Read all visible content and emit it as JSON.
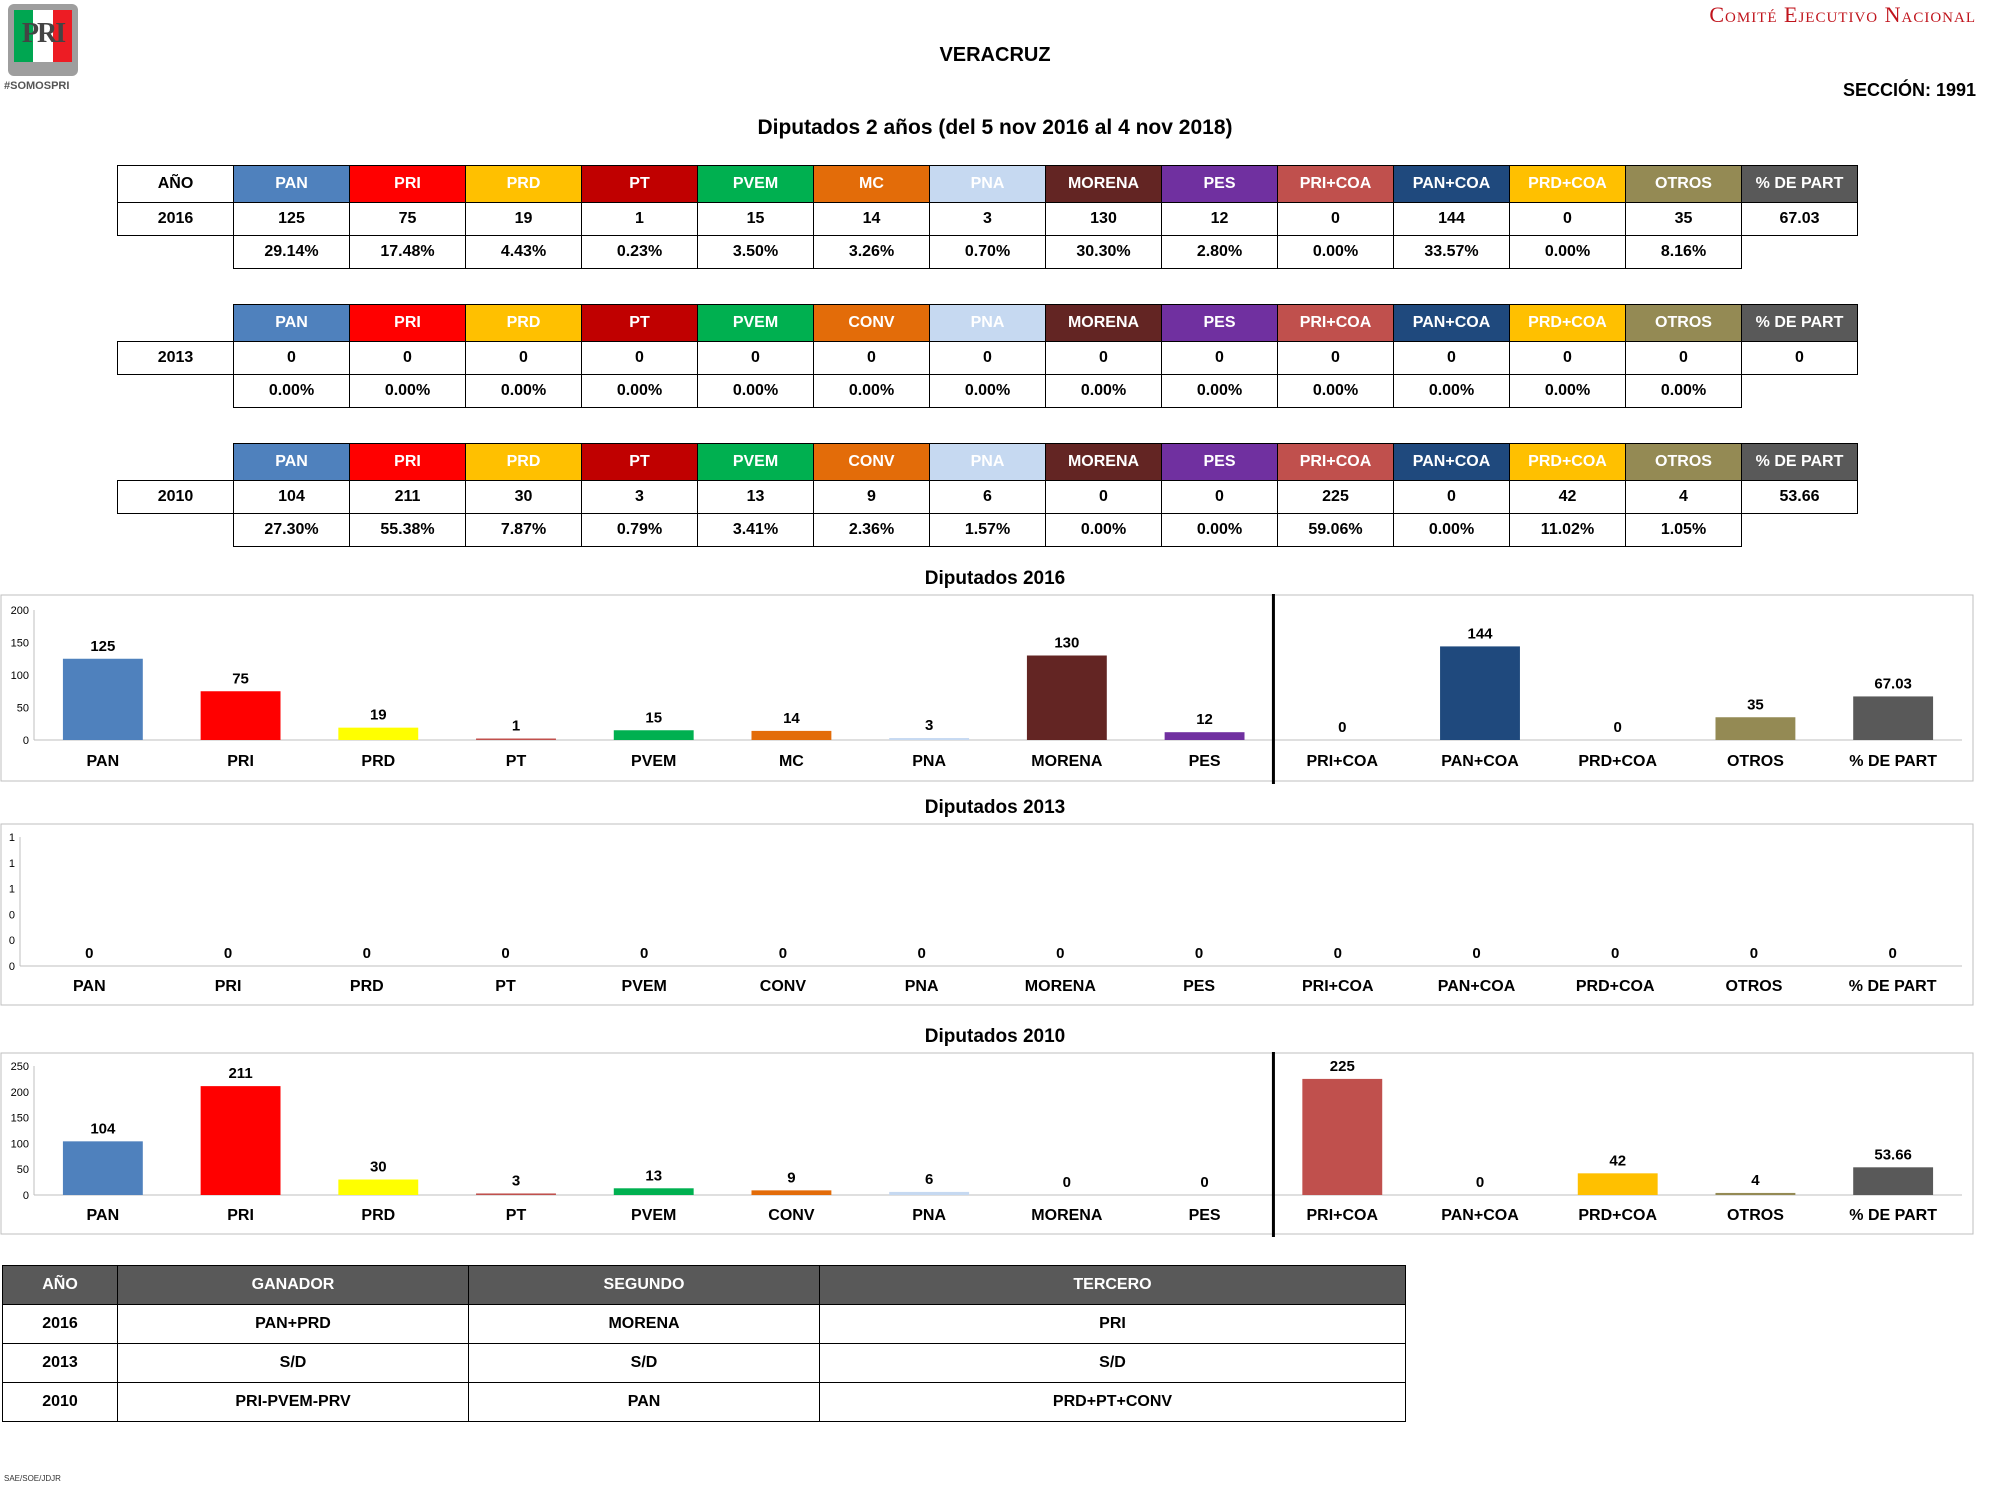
{
  "header": {
    "logo_text": "PRI",
    "hashtag": "#SOMOSPRI",
    "committee": "Comité Ejecutivo Nacional",
    "state": "VERACRUZ",
    "section": "SECCIÓN: 1991",
    "subtitle": "Diputados 2 años (del 5 nov 2016 al 4 nov 2018)"
  },
  "colors": {
    "PAN": "#4f81bd",
    "PRI": "#ff0000",
    "PRD": "#ffc000",
    "PT": "#c00000",
    "PVEM": "#00b050",
    "MC": "#e36c09",
    "CONV": "#e36c09",
    "PNA": "#c6d9f1",
    "MORENA": "#632523",
    "PES": "#7030a0",
    "PRI+COA": "#c0504d",
    "PAN+COA": "#1f497d",
    "PRD+COA": "#ffc000",
    "OTROS": "#948a54",
    "% DE PART": "#595959",
    "PRD_bar": "#ffff00"
  },
  "tables": [
    {
      "year_header": "AÑO",
      "year": "2016",
      "headers": [
        "PAN",
        "PRI",
        "PRD",
        "PT",
        "PVEM",
        "MC",
        "PNA",
        "MORENA",
        "PES",
        "PRI+COA",
        "PAN+COA",
        "PRD+COA",
        "OTROS",
        "% DE PART"
      ],
      "values": [
        "125",
        "75",
        "19",
        "1",
        "15",
        "14",
        "3",
        "130",
        "12",
        "0",
        "144",
        "0",
        "35",
        "67.03"
      ],
      "percents": [
        "29.14%",
        "17.48%",
        "4.43%",
        "0.23%",
        "3.50%",
        "3.26%",
        "0.70%",
        "30.30%",
        "2.80%",
        "0.00%",
        "33.57%",
        "0.00%",
        "8.16%"
      ]
    },
    {
      "year_header": "",
      "year": "2013",
      "headers": [
        "PAN",
        "PRI",
        "PRD",
        "PT",
        "PVEM",
        "CONV",
        "PNA",
        "MORENA",
        "PES",
        "PRI+COA",
        "PAN+COA",
        "PRD+COA",
        "OTROS",
        "% DE PART"
      ],
      "values": [
        "0",
        "0",
        "0",
        "0",
        "0",
        "0",
        "0",
        "0",
        "0",
        "0",
        "0",
        "0",
        "0",
        "0"
      ],
      "percents": [
        "0.00%",
        "0.00%",
        "0.00%",
        "0.00%",
        "0.00%",
        "0.00%",
        "0.00%",
        "0.00%",
        "0.00%",
        "0.00%",
        "0.00%",
        "0.00%",
        "0.00%"
      ]
    },
    {
      "year_header": "",
      "year": "2010",
      "headers": [
        "PAN",
        "PRI",
        "PRD",
        "PT",
        "PVEM",
        "CONV",
        "PNA",
        "MORENA",
        "PES",
        "PRI+COA",
        "PAN+COA",
        "PRD+COA",
        "OTROS",
        "% DE PART"
      ],
      "values": [
        "104",
        "211",
        "30",
        "3",
        "13",
        "9",
        "6",
        "0",
        "0",
        "225",
        "0",
        "42",
        "4",
        "53.66"
      ],
      "percents": [
        "27.30%",
        "55.38%",
        "7.87%",
        "0.79%",
        "3.41%",
        "2.36%",
        "1.57%",
        "0.00%",
        "0.00%",
        "59.06%",
        "0.00%",
        "11.02%",
        "1.05%"
      ]
    }
  ],
  "chart_data": [
    {
      "type": "bar",
      "title": "Diputados  2016",
      "categories": [
        "PAN",
        "PRI",
        "PRD",
        "PT",
        "PVEM",
        "MC",
        "PNA",
        "MORENA",
        "PES",
        "PRI+COA",
        "PAN+COA",
        "PRD+COA",
        "OTROS",
        "% DE PART"
      ],
      "values": [
        125,
        75,
        19,
        1,
        15,
        14,
        3,
        130,
        12,
        0,
        144,
        0,
        35,
        67.03
      ],
      "value_labels": [
        "125",
        "75",
        "19",
        "1",
        "15",
        "14",
        "3",
        "130",
        "12",
        "0",
        "144",
        "0",
        "35",
        "67.03"
      ],
      "colors": [
        "#4f81bd",
        "#ff0000",
        "#ffff00",
        "#c0504d",
        "#00b050",
        "#e36c09",
        "#c6d9f1",
        "#632523",
        "#7030a0",
        "#c0504d",
        "#1f497d",
        "#ffc000",
        "#948a54",
        "#595959"
      ],
      "ylim": [
        0,
        200
      ],
      "yticks": [
        "0",
        "50",
        "100",
        "150",
        "200"
      ],
      "separator_after": 9
    },
    {
      "type": "bar",
      "title": "Diputados 2013",
      "categories": [
        "PAN",
        "PRI",
        "PRD",
        "PT",
        "PVEM",
        "CONV",
        "PNA",
        "MORENA",
        "PES",
        "PRI+COA",
        "PAN+COA",
        "PRD+COA",
        "OTROS",
        "% DE PART"
      ],
      "values": [
        0,
        0,
        0,
        0,
        0,
        0,
        0,
        0,
        0,
        0,
        0,
        0,
        0,
        0
      ],
      "value_labels": [
        "0",
        "0",
        "0",
        "0",
        "0",
        "0",
        "0",
        "0",
        "0",
        "0",
        "0",
        "0",
        "0",
        "0"
      ],
      "colors": [
        "#4f81bd",
        "#ff0000",
        "#ffff00",
        "#c0504d",
        "#00b050",
        "#e36c09",
        "#c6d9f1",
        "#632523",
        "#7030a0",
        "#c0504d",
        "#1f497d",
        "#ffc000",
        "#948a54",
        "#595959"
      ],
      "ylim": [
        0,
        1
      ],
      "yticks": [
        "0",
        "0",
        "0",
        "1",
        "1",
        "1"
      ],
      "separator_after": null
    },
    {
      "type": "bar",
      "title": "Diputados 2010",
      "categories": [
        "PAN",
        "PRI",
        "PRD",
        "PT",
        "PVEM",
        "CONV",
        "PNA",
        "MORENA",
        "PES",
        "PRI+COA",
        "PAN+COA",
        "PRD+COA",
        "OTROS",
        "% DE PART"
      ],
      "values": [
        104,
        211,
        30,
        3,
        13,
        9,
        6,
        0,
        0,
        225,
        0,
        42,
        4,
        53.66
      ],
      "value_labels": [
        "104",
        "211",
        "30",
        "3",
        "13",
        "9",
        "6",
        "0",
        "0",
        "225",
        "0",
        "42",
        "4",
        "53.66"
      ],
      "colors": [
        "#4f81bd",
        "#ff0000",
        "#ffff00",
        "#c0504d",
        "#00b050",
        "#e36c09",
        "#c6d9f1",
        "#632523",
        "#7030a0",
        "#c0504d",
        "#1f497d",
        "#ffc000",
        "#948a54",
        "#595959"
      ],
      "ylim": [
        0,
        250
      ],
      "yticks": [
        "0",
        "50",
        "100",
        "150",
        "200",
        "250"
      ],
      "separator_after": 9
    }
  ],
  "winners": {
    "headers": [
      "AÑO",
      "GANADOR",
      "SEGUNDO",
      "TERCERO"
    ],
    "rows": [
      [
        "2016",
        "PAN+PRD",
        "MORENA",
        "PRI"
      ],
      [
        "2013",
        "S/D",
        "S/D",
        "S/D"
      ],
      [
        "2010",
        "PRI-PVEM-PRV",
        "PAN",
        "PRD+PT+CONV"
      ]
    ]
  },
  "footer": "SAE/SOE/JDJR"
}
